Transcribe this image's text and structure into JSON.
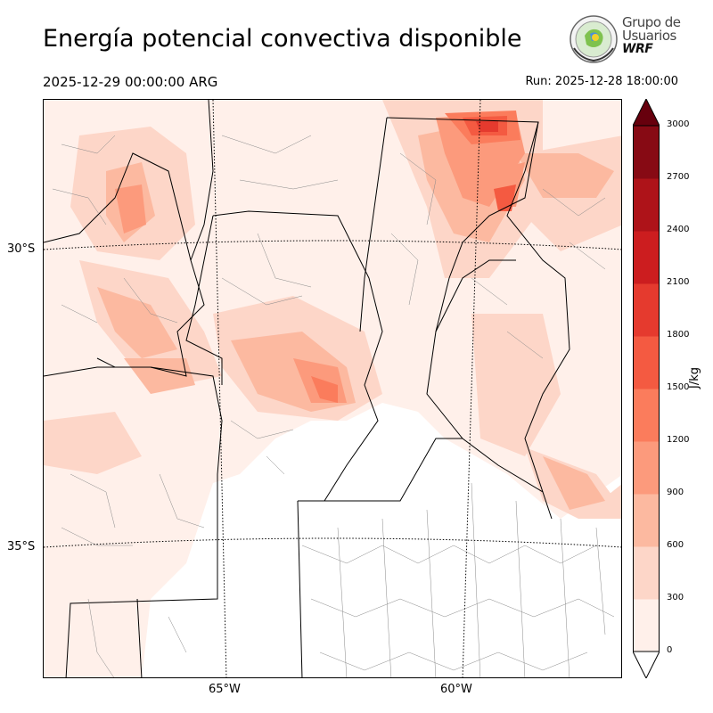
{
  "header": {
    "title": "Energía potencial convectiva disponible",
    "valid_time": "2025-12-29 00:00:00 ARG",
    "run_time": "Run: 2025-12-28 18:00:00"
  },
  "logo": {
    "line1": "Grupo de",
    "line2": "Usuarios",
    "line3": "WRF"
  },
  "map": {
    "lat_labels": [
      "30°S",
      "35°S"
    ],
    "lon_labels": [
      "65°W",
      "60°W"
    ]
  },
  "colorbar": {
    "unit": "J/kg",
    "ticks": [
      "0",
      "300",
      "600",
      "900",
      "1200",
      "1500",
      "1800",
      "2100",
      "2400",
      "2700",
      "3000"
    ],
    "colors": [
      "#fff0ea",
      "#fdd6c8",
      "#fcb9a0",
      "#fc9a7c",
      "#fb7c5c",
      "#f45a41",
      "#e53a2e",
      "#cc1d1f",
      "#ae1319",
      "#870a14"
    ],
    "extend_over_color": "#67000d"
  }
}
